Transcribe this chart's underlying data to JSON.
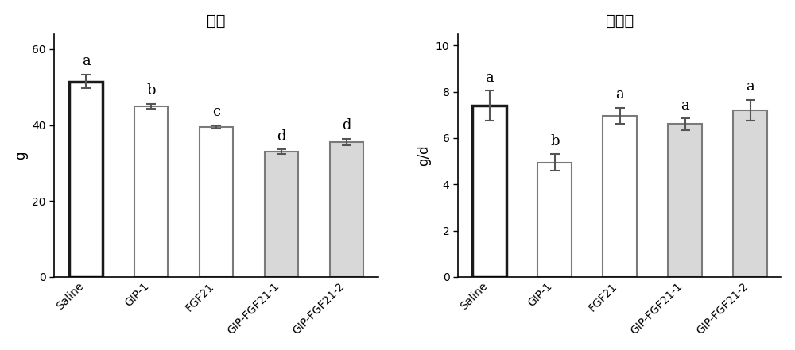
{
  "chart1": {
    "title": "体重",
    "ylabel": "g",
    "categories": [
      "Saline",
      "GIP-1",
      "FGF21",
      "GIP-FGF21-1",
      "GIP-FGF21-2"
    ],
    "values": [
      51.5,
      45.0,
      39.5,
      33.0,
      35.5
    ],
    "errors": [
      1.8,
      0.6,
      0.5,
      0.6,
      0.9
    ],
    "letters": [
      "a",
      "b",
      "c",
      "d",
      "d"
    ],
    "bar_colors": [
      "#ffffff",
      "#ffffff",
      "#ffffff",
      "#d8d8d8",
      "#d8d8d8"
    ],
    "edge_colors": [
      "#1a1a1a",
      "#7a7a7a",
      "#7a7a7a",
      "#7a7a7a",
      "#7a7a7a"
    ],
    "edge_widths": [
      2.5,
      1.5,
      1.5,
      1.5,
      1.5
    ],
    "ylim": [
      0,
      64
    ],
    "yticks": [
      0,
      20,
      40,
      60
    ]
  },
  "chart2": {
    "title": "饮食量",
    "ylabel": "g/d",
    "categories": [
      "Saline",
      "GIP-1",
      "FGF21",
      "GIP-FGF21-1",
      "GIP-FGF21-2"
    ],
    "values": [
      7.4,
      4.95,
      6.95,
      6.6,
      7.2
    ],
    "errors": [
      0.65,
      0.35,
      0.35,
      0.25,
      0.45
    ],
    "letters": [
      "a",
      "b",
      "a",
      "a",
      "a"
    ],
    "bar_colors": [
      "#ffffff",
      "#ffffff",
      "#ffffff",
      "#d8d8d8",
      "#d8d8d8"
    ],
    "edge_colors": [
      "#1a1a1a",
      "#7a7a7a",
      "#7a7a7a",
      "#7a7a7a",
      "#7a7a7a"
    ],
    "edge_widths": [
      2.5,
      1.5,
      1.5,
      1.5,
      1.5
    ],
    "ylim": [
      0,
      10.5
    ],
    "yticks": [
      0,
      2,
      4,
      6,
      8,
      10
    ]
  },
  "figure": {
    "bg_color": "#ffffff",
    "bar_width": 0.52,
    "letter_fontsize": 13,
    "title_fontsize": 14,
    "tick_fontsize": 10,
    "ylabel_fontsize": 12
  }
}
